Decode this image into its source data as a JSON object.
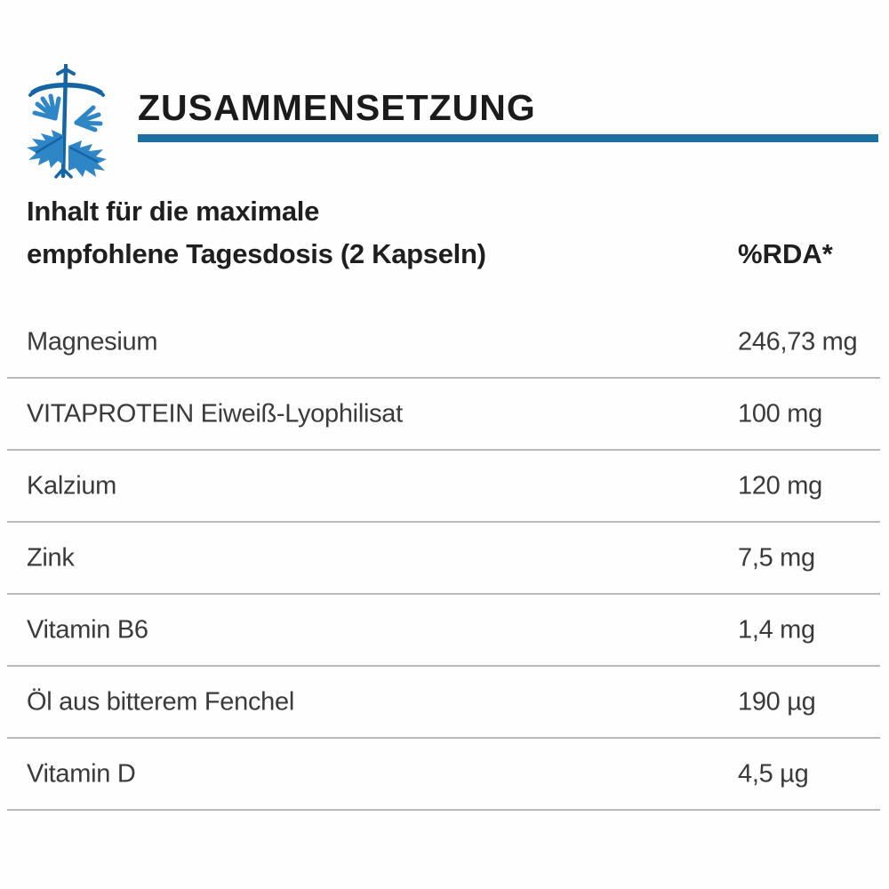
{
  "header": {
    "title": "ZUSAMMENSETZUNG",
    "icon": "fennel-plant-icon"
  },
  "table": {
    "col1_header_line1": "Inhalt für die maximale",
    "col1_header_line2": "empfohlene Tagesdosis (2 Kapseln)",
    "col2_header": "%RDA*",
    "rows": [
      {
        "name": "Magnesium",
        "value": "246,73 mg"
      },
      {
        "name": "VITAPROTEIN Eiweiß-Lyophilisat",
        "value": "100 mg"
      },
      {
        "name": "Kalzium",
        "value": "120 mg"
      },
      {
        "name": "Zink",
        "value": "7,5 mg"
      },
      {
        "name": "Vitamin B6",
        "value": "1,4 mg"
      },
      {
        "name": "Öl aus bitterem Fenchel",
        "value": "190 µg"
      },
      {
        "name": "Vitamin D",
        "value": "4,5 µg"
      }
    ]
  },
  "colors": {
    "accent_blue": "#1c6fa0",
    "icon_blue": "#2e86c6",
    "icon_blue_dark": "#1565a5",
    "divider_gray": "#b9b9b9"
  }
}
